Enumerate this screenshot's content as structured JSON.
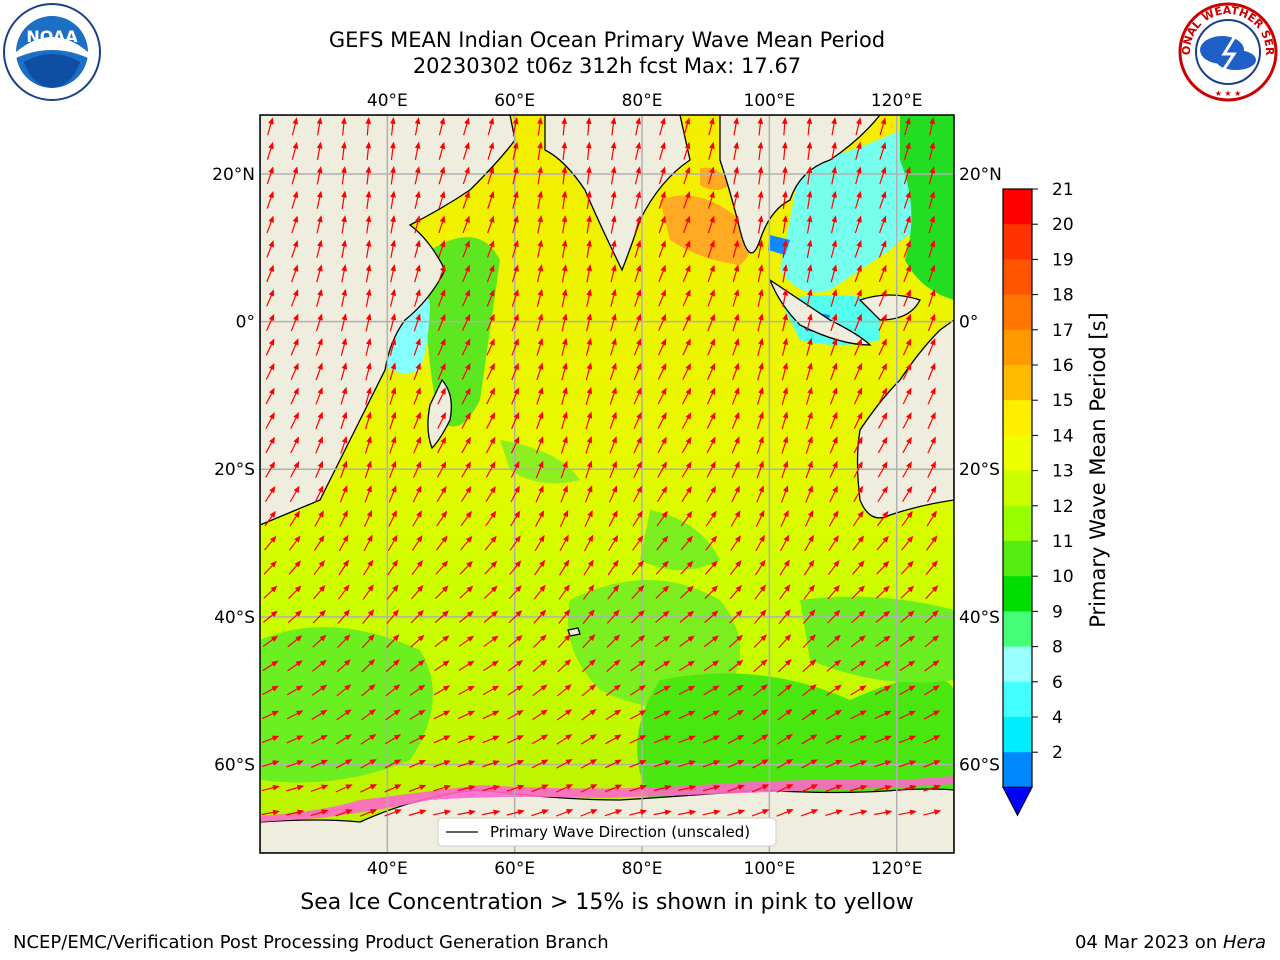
{
  "title": {
    "line1": "GEFS MEAN Indian Ocean Primary Wave Mean Period",
    "line2": "20230302 t06z 312h fcst   Max: 17.67"
  },
  "map": {
    "lon_ticks": [
      "40°E",
      "60°E",
      "80°E",
      "100°E",
      "120°E"
    ],
    "lat_ticks": [
      "20°N",
      "0°",
      "20°S",
      "40°S",
      "60°S"
    ],
    "lon_values": [
      40,
      60,
      80,
      100,
      120
    ],
    "lat_values": [
      20,
      0,
      -20,
      -40,
      -60
    ],
    "extent": {
      "lon_min": 20,
      "lon_max": 129,
      "lat_min": -72,
      "lat_max": 28
    },
    "max_value": 17.67,
    "legend_label": "Primary Wave Direction (unscaled)",
    "land_color": "#efedde",
    "arrow_color": "#ff0000"
  },
  "colorbar": {
    "label": "Primary Wave Mean Period [s]",
    "ticks": [
      "21",
      "20",
      "19",
      "18",
      "17",
      "16",
      "15",
      "14",
      "13",
      "12",
      "11",
      "10",
      "9",
      "8",
      "6",
      "4",
      "2"
    ],
    "colors": [
      "#ff0000",
      "#ff3300",
      "#ff5500",
      "#ff7700",
      "#ff9900",
      "#ffbb00",
      "#ffee00",
      "#eeff00",
      "#ccff00",
      "#99ff00",
      "#55ee11",
      "#00dd00",
      "#44ff77",
      "#99ffff",
      "#44ffff",
      "#00eeff",
      "#0088ff"
    ],
    "extend_color": "#0000ff"
  },
  "caption": "Sea Ice Concentration > 15% is shown in pink to yellow",
  "footer": {
    "left": "NCEP/EMC/Verification Post Processing Product Generation Branch",
    "right_prefix": "04 Mar 2023 on ",
    "right_italic": "Hera"
  },
  "logos": {
    "noaa": "noaa-logo",
    "nws_text": "NATIONAL WEATHER SERVICE"
  }
}
